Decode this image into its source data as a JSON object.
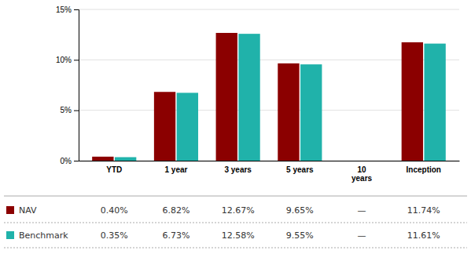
{
  "chart_data": {
    "type": "bar",
    "categories": [
      "YTD",
      "1 year",
      "3 years",
      "5 years",
      "10\nyears",
      "Inception"
    ],
    "series": [
      {
        "name": "NAV",
        "color": "#8B0000",
        "values": [
          0.4,
          6.82,
          12.67,
          9.65,
          null,
          11.74
        ],
        "value_labels": [
          "0.40%",
          "6.82%",
          "12.67%",
          "9.65%",
          "—",
          "11.74%"
        ]
      },
      {
        "name": "Benchmark",
        "color": "#20B2AA",
        "values": [
          0.35,
          6.73,
          12.58,
          9.55,
          null,
          11.61
        ],
        "value_labels": [
          "0.35%",
          "6.73%",
          "12.58%",
          "9.55%",
          "—",
          "11.61%"
        ]
      }
    ],
    "ylim": [
      0,
      15
    ],
    "yticks": [
      {
        "value": 0,
        "label": "0%"
      },
      {
        "value": 5,
        "label": "5%"
      },
      {
        "value": 10,
        "label": "10%"
      },
      {
        "value": 15,
        "label": "15%"
      }
    ],
    "grid": true,
    "legend": "bottom",
    "data_labels": true
  }
}
